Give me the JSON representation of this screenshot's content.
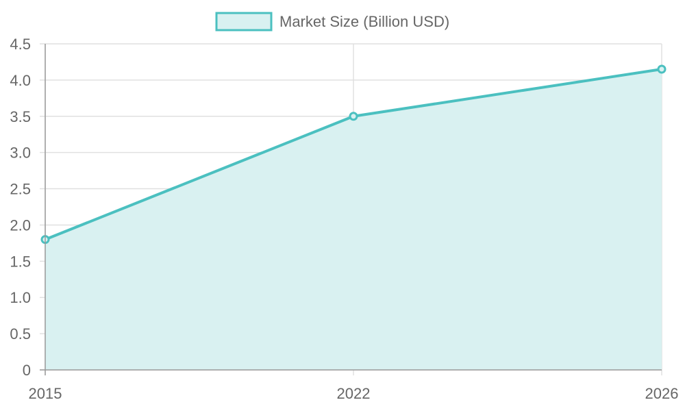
{
  "colors": {
    "line": "#4bc0c0",
    "fill": "#d9f1f1",
    "grid": "#e0e0e0",
    "axis": "#9a9a9a",
    "text": "#666666",
    "background": "#ffffff"
  },
  "chart_data": {
    "type": "area",
    "x": [
      "2015",
      "2022",
      "2026"
    ],
    "series": [
      {
        "name": "Market Size (Billion USD)",
        "values": [
          1.8,
          3.5,
          4.15
        ]
      }
    ],
    "ylim": [
      0,
      4.5
    ],
    "yticks": [
      "0",
      "0.5",
      "1.0",
      "1.5",
      "2.0",
      "2.5",
      "3.0",
      "3.5",
      "4.0",
      "4.5"
    ],
    "grid": true,
    "legend_position": "top-center"
  }
}
